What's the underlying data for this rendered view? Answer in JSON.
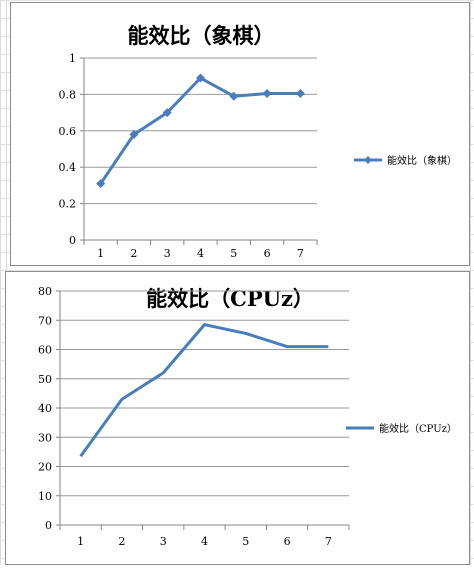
{
  "colors": {
    "series": "#4a7ebb",
    "grid": "#9a9a9a",
    "axis": "#868686",
    "text": "#000000"
  },
  "chart_data": [
    {
      "type": "line",
      "title": "能效比（象棋）",
      "categories": [
        "1",
        "2",
        "3",
        "4",
        "5",
        "6",
        "7"
      ],
      "series": [
        {
          "name": "能效比（象棋）",
          "values": [
            0.31,
            0.58,
            0.7,
            0.89,
            0.79,
            0.805,
            0.805
          ]
        }
      ],
      "yticks": [
        "0",
        "0.2",
        "0.4",
        "0.6",
        "0.8",
        "1"
      ],
      "ylim": [
        0,
        1
      ],
      "markers": true,
      "grid": true,
      "legend": "right"
    },
    {
      "type": "line",
      "title": "能效比（CPUz）",
      "categories": [
        "1",
        "2",
        "3",
        "4",
        "5",
        "6",
        "7"
      ],
      "series": [
        {
          "name": "能效比（CPUz）",
          "values": [
            23.5,
            43,
            52,
            68.5,
            65.5,
            61,
            61
          ]
        }
      ],
      "yticks": [
        "0",
        "10",
        "20",
        "30",
        "40",
        "50",
        "60",
        "70",
        "80"
      ],
      "ylim": [
        0,
        80
      ],
      "markers": false,
      "grid": true,
      "legend": "right"
    }
  ]
}
